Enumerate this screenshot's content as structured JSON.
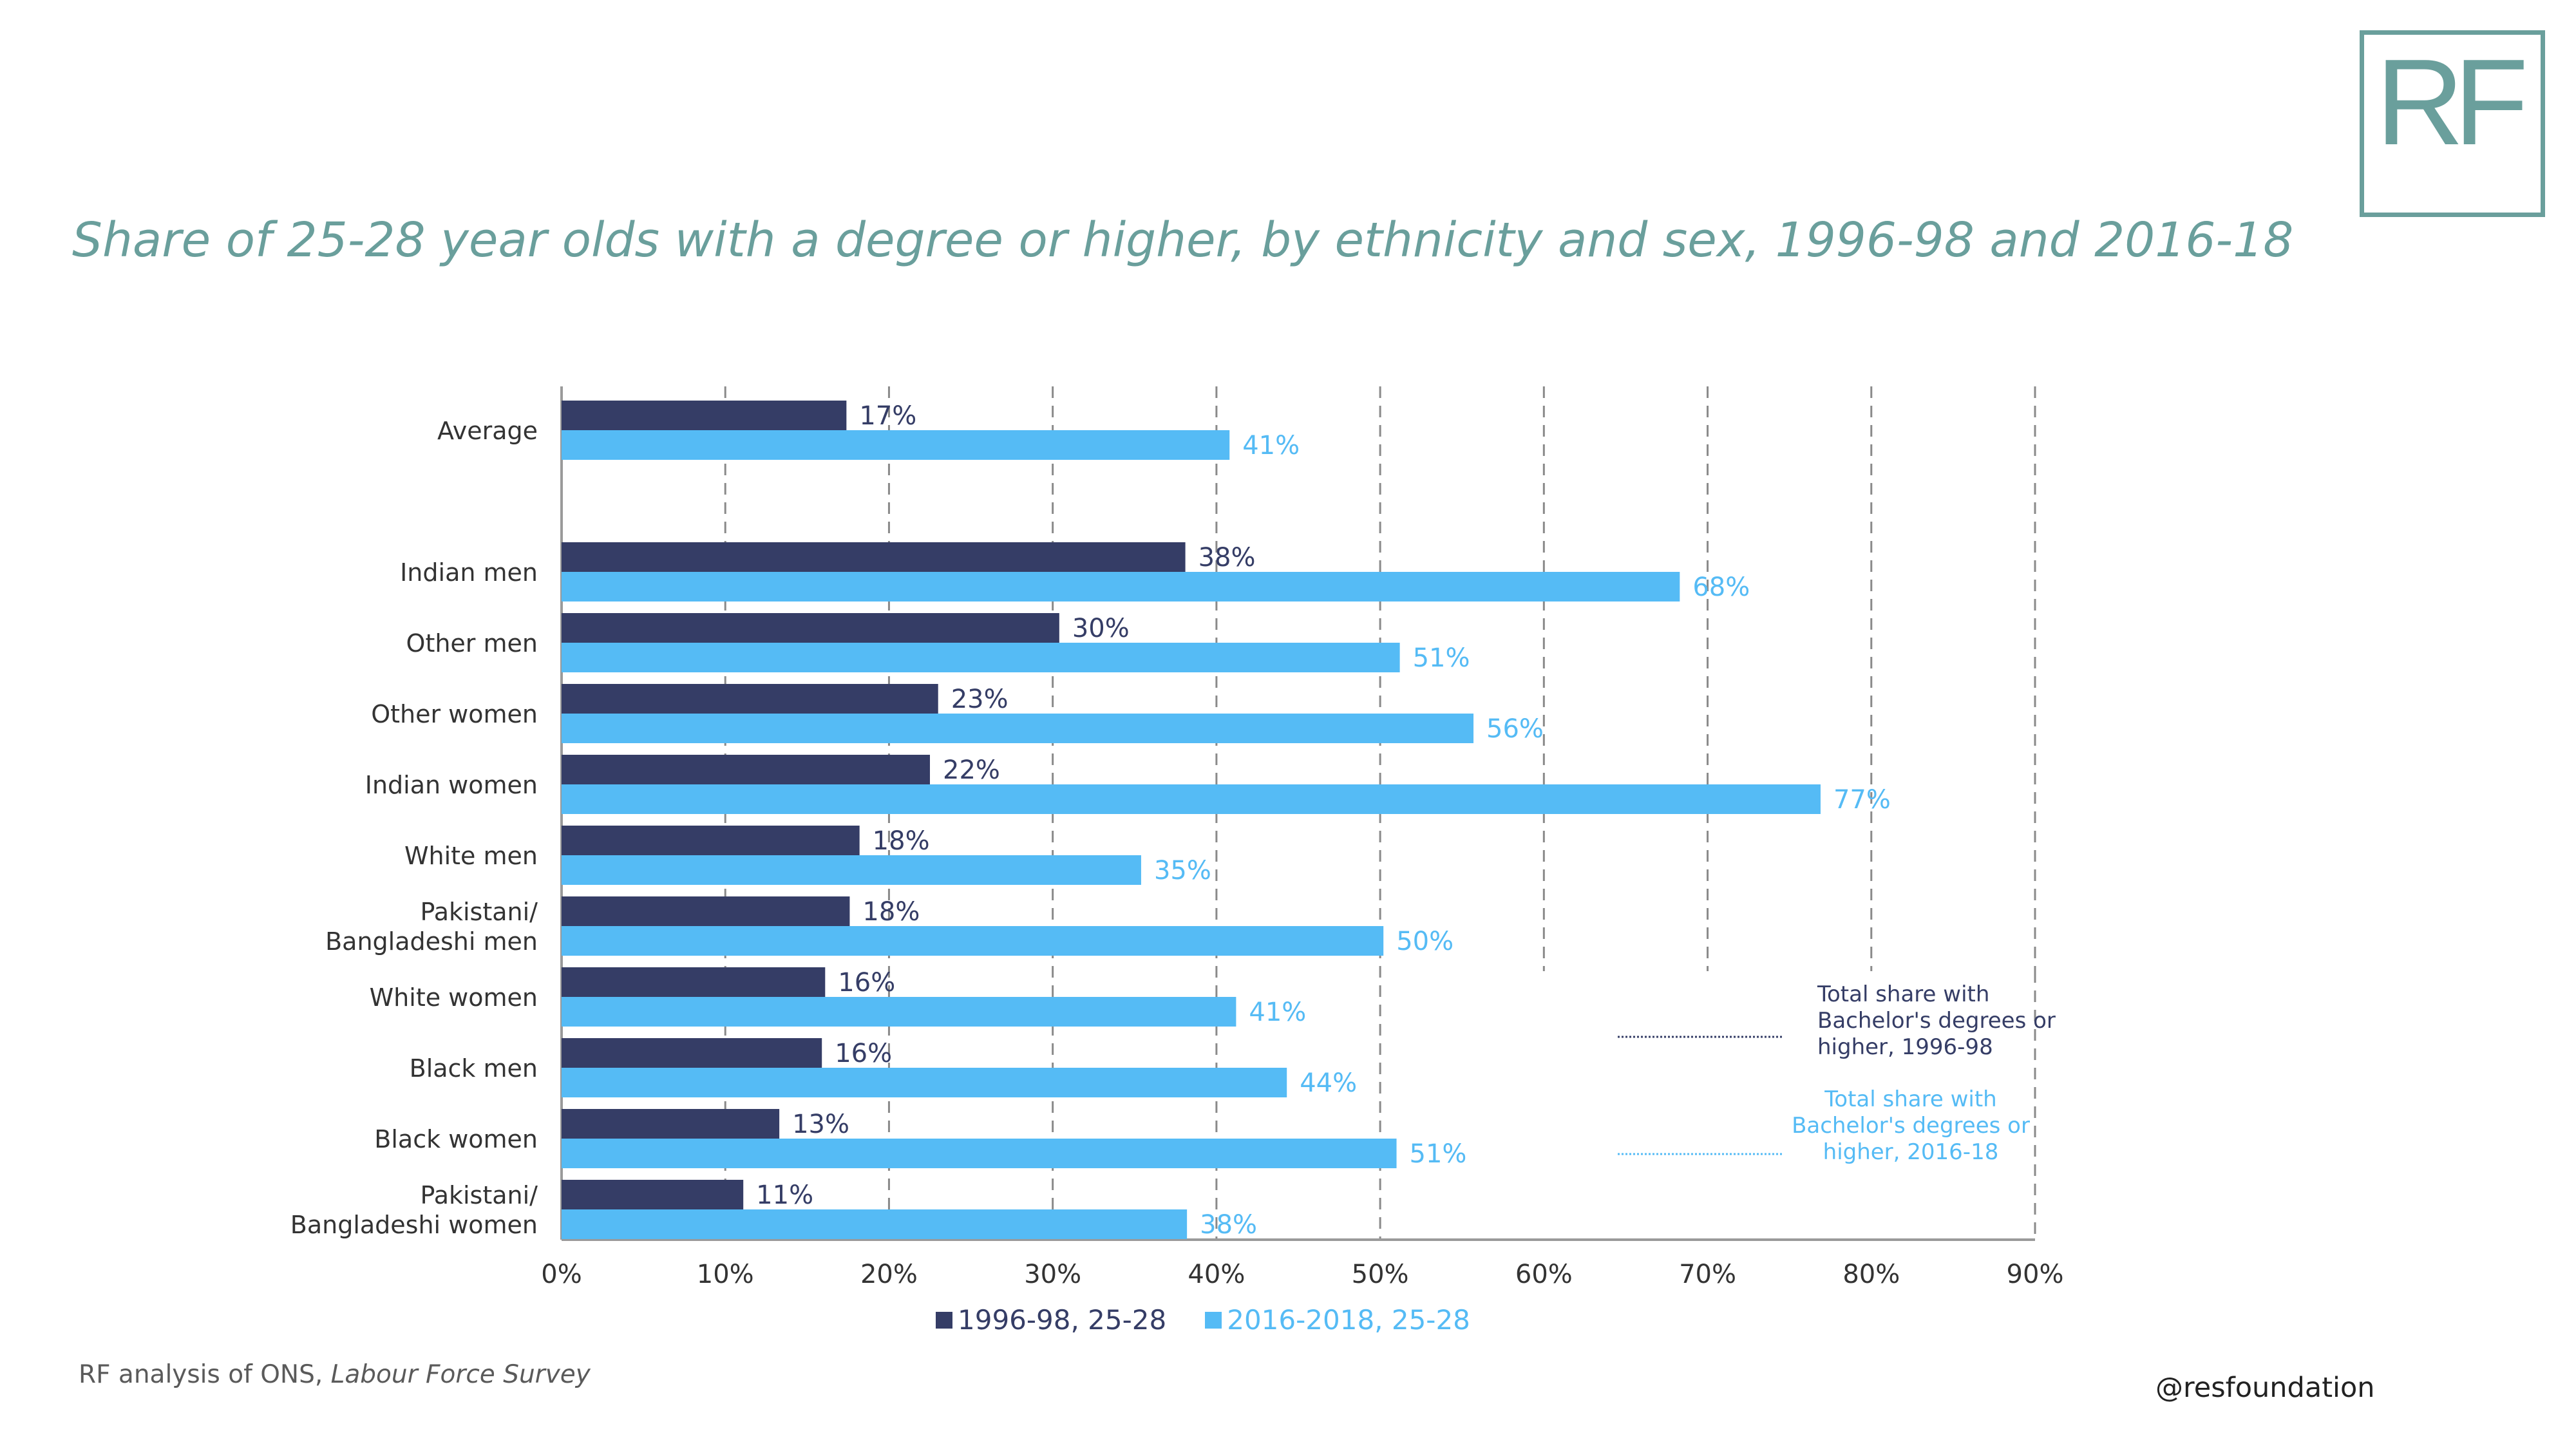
{
  "logo": {
    "text": "RF"
  },
  "title": "Share of 25-28 year olds with a degree or higher, by ethnicity and sex, 1996-98 and 2016-18",
  "source": {
    "prefix": "RF analysis of ONS, ",
    "italic": "Labour Force Survey"
  },
  "handle": "@resfoundation",
  "colors": {
    "series1": "#353d66",
    "series2": "#55bbf5",
    "title": "#6a9f9c",
    "grid": "#8a8a8a"
  },
  "chart_data": {
    "type": "bar",
    "orientation": "horizontal",
    "categories": [
      [
        "Average"
      ],
      [
        "Indian men"
      ],
      [
        "Other men"
      ],
      [
        "Other women"
      ],
      [
        "Indian women"
      ],
      [
        "White men"
      ],
      [
        "Pakistani/",
        "Bangladeshi men"
      ],
      [
        "White women"
      ],
      [
        "Black men"
      ],
      [
        "Black women"
      ],
      [
        "Pakistani/",
        "Bangladeshi women"
      ]
    ],
    "series": [
      {
        "name": "1996-98, 25-28",
        "values": [
          17.4,
          38.1,
          30.4,
          23,
          22.5,
          18.2,
          17.6,
          16.1,
          15.9,
          13.3,
          11.1
        ],
        "labels": [
          "17%",
          "38%",
          "30%",
          "23%",
          "22%",
          "18%",
          "18%",
          "16%",
          "16%",
          "13%",
          "11%"
        ]
      },
      {
        "name": "2016-2018, 25-28",
        "values": [
          40.8,
          68.3,
          51.2,
          55.7,
          76.9,
          35.4,
          50.2,
          41.2,
          44.3,
          51,
          38.2
        ],
        "labels": [
          "41%",
          "68%",
          "51%",
          "56%",
          "77%",
          "35%",
          "50%",
          "41%",
          "44%",
          "51%",
          "38%"
        ]
      }
    ],
    "xlim": [
      0,
      90
    ],
    "xticks": [
      "0%",
      "10%",
      "20%",
      "30%",
      "40%",
      "50%",
      "60%",
      "70%",
      "80%",
      "90%"
    ],
    "grid": "vertical dashed",
    "legend": "bottom",
    "annotations": [
      "Total share with Bachelor's degrees or higher, 1996-98",
      "Total share with Bachelor's degrees or higher, 2016-18"
    ]
  }
}
